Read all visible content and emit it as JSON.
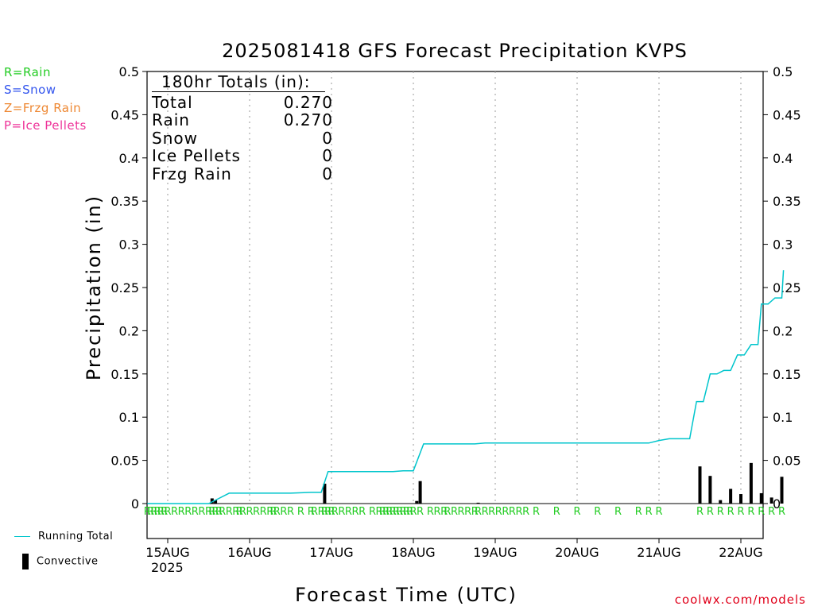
{
  "title": "2025081418 GFS Forecast Precipitation KVPS",
  "precip_type_legend": [
    {
      "label": "R=Rain",
      "color": "#22cc22"
    },
    {
      "label": "S=Snow",
      "color": "#3355ee"
    },
    {
      "label": "Z=Frzg Rain",
      "color": "#ee8833"
    },
    {
      "label": "P=Ice Pellets",
      "color": "#ee3399"
    }
  ],
  "totals": {
    "header": "180hr Totals (in):",
    "rows": [
      {
        "label": "Total",
        "value": "0.270"
      },
      {
        "label": "Rain",
        "value": "0.270"
      },
      {
        "label": "Snow",
        "value": "0"
      },
      {
        "label": "Ice Pellets",
        "value": "0"
      },
      {
        "label": "Frzg Rain",
        "value": "0"
      }
    ]
  },
  "bottom_legend": {
    "running_total": "Running Total",
    "convective": "Convective"
  },
  "year_label": "2025",
  "credit": "coolwx.com/models",
  "colors": {
    "running_total": "#00c5cc",
    "bars": "#000000",
    "rain_marker": "#22cc22",
    "grid": "#aaaaaa"
  },
  "chart_data": {
    "type": "bar",
    "title": "2025081418 GFS Forecast Precipitation KVPS",
    "xlabel": "Forecast Time (UTC)",
    "ylabel": "Precipitation (in)",
    "ylim": [
      0,
      0.5
    ],
    "yticks": [
      0,
      0.05,
      0.1,
      0.15,
      0.2,
      0.25,
      0.3,
      0.35,
      0.4,
      0.45,
      0.5
    ],
    "ytick_labels": [
      "0",
      "0.05",
      "0.1",
      "0.15",
      "0.2",
      "0.25",
      "0.3",
      "0.35",
      "0.4",
      "0.45",
      "0.5"
    ],
    "x_unit": "forecast hours from 2025-08-14 18Z",
    "xlim": [
      0,
      180
    ],
    "xticks": [
      6,
      30,
      54,
      78,
      102,
      126,
      150,
      174
    ],
    "xtick_labels": [
      "15AUG",
      "16AUG",
      "17AUG",
      "18AUG",
      "19AUG",
      "20AUG",
      "21AUG",
      "22AUG"
    ],
    "grid": "vertical dotted at day boundaries",
    "series": [
      {
        "name": "Running Total",
        "type": "line",
        "points": [
          [
            0,
            0
          ],
          [
            18,
            0
          ],
          [
            21,
            0.006
          ],
          [
            24,
            0.012
          ],
          [
            42,
            0.012
          ],
          [
            48,
            0.013
          ],
          [
            51,
            0.013
          ],
          [
            53,
            0.037
          ],
          [
            72,
            0.037
          ],
          [
            75,
            0.038
          ],
          [
            78,
            0.038
          ],
          [
            81,
            0.069
          ],
          [
            96,
            0.069
          ],
          [
            99,
            0.07
          ],
          [
            102,
            0.07
          ],
          [
            147,
            0.07
          ],
          [
            150,
            0.073
          ],
          [
            153,
            0.075
          ],
          [
            159,
            0.075
          ],
          [
            161,
            0.118
          ],
          [
            163,
            0.118
          ],
          [
            165,
            0.15
          ],
          [
            167,
            0.15
          ],
          [
            169,
            0.154
          ],
          [
            171,
            0.154
          ],
          [
            173,
            0.172
          ],
          [
            175,
            0.172
          ],
          [
            177,
            0.184
          ],
          [
            179,
            0.184
          ],
          [
            180,
            0.231
          ],
          [
            182,
            0.231
          ],
          [
            184,
            0.238
          ],
          [
            186,
            0.238
          ],
          [
            186.5,
            0.27
          ]
        ]
      },
      {
        "name": "Convective",
        "type": "bar",
        "x": [
          19,
          20,
          52,
          79,
          80,
          97,
          162,
          165,
          168,
          171,
          174,
          177,
          180,
          183,
          186
        ],
        "values": [
          0.006,
          0.004,
          0.023,
          0.003,
          0.026,
          0.001,
          0.043,
          0.032,
          0.004,
          0.017,
          0.011,
          0.047,
          0.012,
          0.007,
          0.031
        ]
      }
    ],
    "precip_type_markers": {
      "symbol": "R",
      "hours": [
        0,
        1,
        2,
        3,
        4,
        5,
        6,
        8,
        10,
        12,
        14,
        16,
        18,
        19,
        20,
        21,
        22,
        24,
        26,
        27,
        28,
        30,
        32,
        34,
        36,
        37,
        38,
        40,
        42,
        45,
        48,
        49,
        51,
        52,
        53,
        54,
        55,
        57,
        59,
        61,
        63,
        66,
        68,
        69,
        70,
        71,
        72,
        73,
        74,
        75,
        76,
        77,
        78,
        80,
        83,
        85,
        87,
        88,
        90,
        92,
        94,
        96,
        97,
        99,
        101,
        103,
        105,
        107,
        109,
        111,
        114,
        120,
        126,
        132,
        138,
        144,
        147,
        150,
        162,
        165,
        168,
        171,
        174,
        177,
        180,
        183,
        186
      ]
    }
  }
}
